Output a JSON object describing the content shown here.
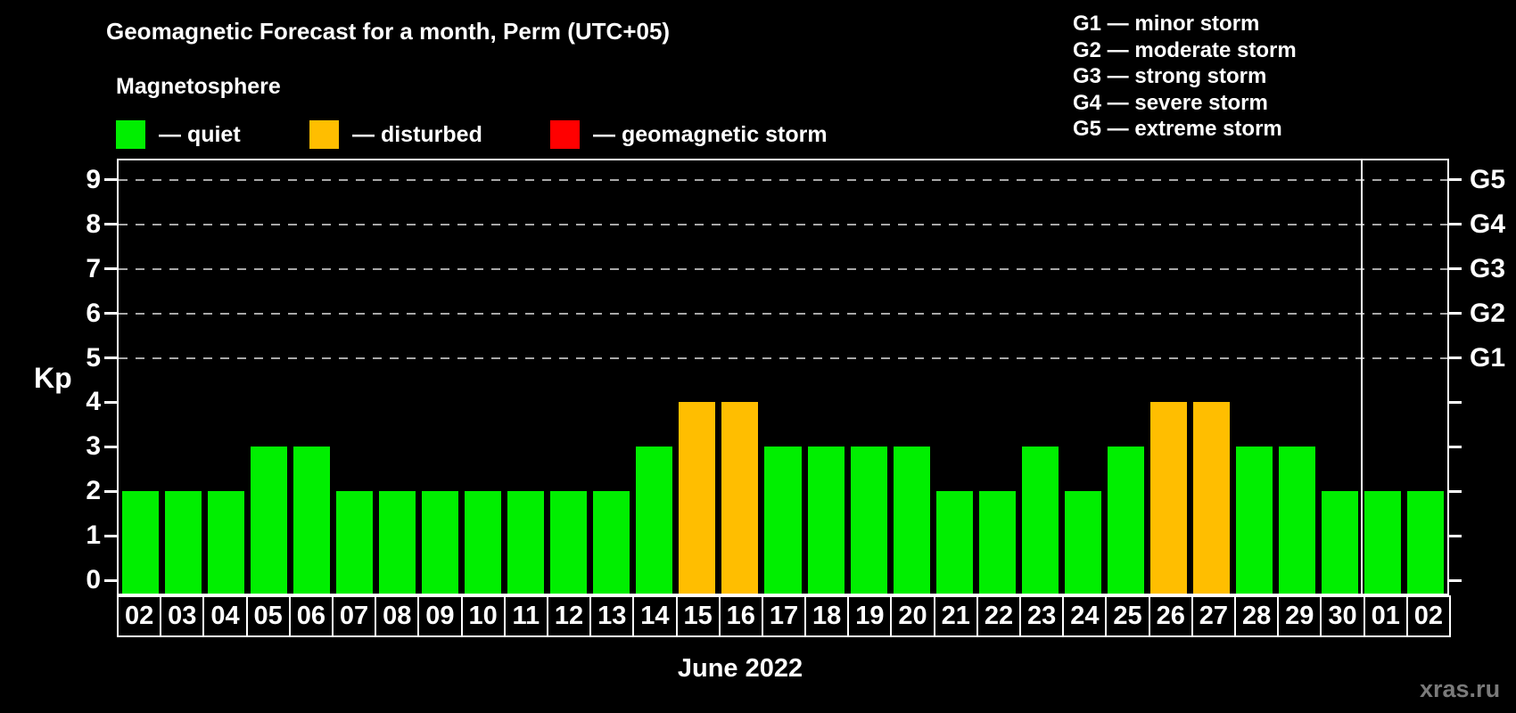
{
  "title": "Geomagnetic Forecast for a month, Perm (UTC+05)",
  "legend": {
    "heading": "Magnetosphere",
    "items": [
      {
        "status": "quiet",
        "label": "— quiet",
        "color": "#00ef00"
      },
      {
        "status": "disturbed",
        "label": "— disturbed",
        "color": "#ffbe00"
      },
      {
        "status": "storm",
        "label": "— geomagnetic storm",
        "color": "#ff0000"
      }
    ]
  },
  "g_scale_legend": {
    "items": [
      "G1 — minor storm",
      "G2 — moderate storm",
      "G3 — strong storm",
      "G4 — severe storm",
      "G5 — extreme storm"
    ]
  },
  "chart_data": {
    "type": "bar",
    "title": "Geomagnetic Forecast for a month, Perm (UTC+05)",
    "xlabel": "June 2022",
    "ylabel": "Kp",
    "ylim": [
      0,
      9.4
    ],
    "yticks": [
      0,
      1,
      2,
      3,
      4,
      5,
      6,
      7,
      8,
      9
    ],
    "gridlines_at": [
      5,
      6,
      7,
      8,
      9
    ],
    "grid": "dashed-horizontal",
    "legend_position": "top-left",
    "right_axis_ticks": [
      {
        "value": 5,
        "label": "G1"
      },
      {
        "value": 6,
        "label": "G2"
      },
      {
        "value": 7,
        "label": "G3"
      },
      {
        "value": 8,
        "label": "G4"
      },
      {
        "value": 9,
        "label": "G5"
      }
    ],
    "categories": [
      "02",
      "03",
      "04",
      "05",
      "06",
      "07",
      "08",
      "09",
      "10",
      "11",
      "12",
      "13",
      "14",
      "15",
      "16",
      "17",
      "18",
      "19",
      "20",
      "21",
      "22",
      "23",
      "24",
      "25",
      "26",
      "27",
      "28",
      "29",
      "30",
      "01",
      "02"
    ],
    "values": [
      2,
      2,
      2,
      3,
      3,
      2,
      2,
      2,
      2,
      2,
      2,
      2,
      3,
      4,
      4,
      3,
      3,
      3,
      3,
      2,
      2,
      3,
      2,
      3,
      4,
      4,
      3,
      3,
      2,
      2,
      2
    ],
    "statuses": [
      "quiet",
      "quiet",
      "quiet",
      "quiet",
      "quiet",
      "quiet",
      "quiet",
      "quiet",
      "quiet",
      "quiet",
      "quiet",
      "quiet",
      "quiet",
      "disturbed",
      "disturbed",
      "quiet",
      "quiet",
      "quiet",
      "quiet",
      "quiet",
      "quiet",
      "quiet",
      "quiet",
      "quiet",
      "disturbed",
      "disturbed",
      "quiet",
      "quiet",
      "quiet",
      "quiet",
      "quiet"
    ],
    "status_colors": {
      "quiet": "#00ef00",
      "disturbed": "#ffbe00",
      "storm": "#ff0000"
    },
    "month_separator_after_index": 28
  },
  "watermark": "xras.ru"
}
